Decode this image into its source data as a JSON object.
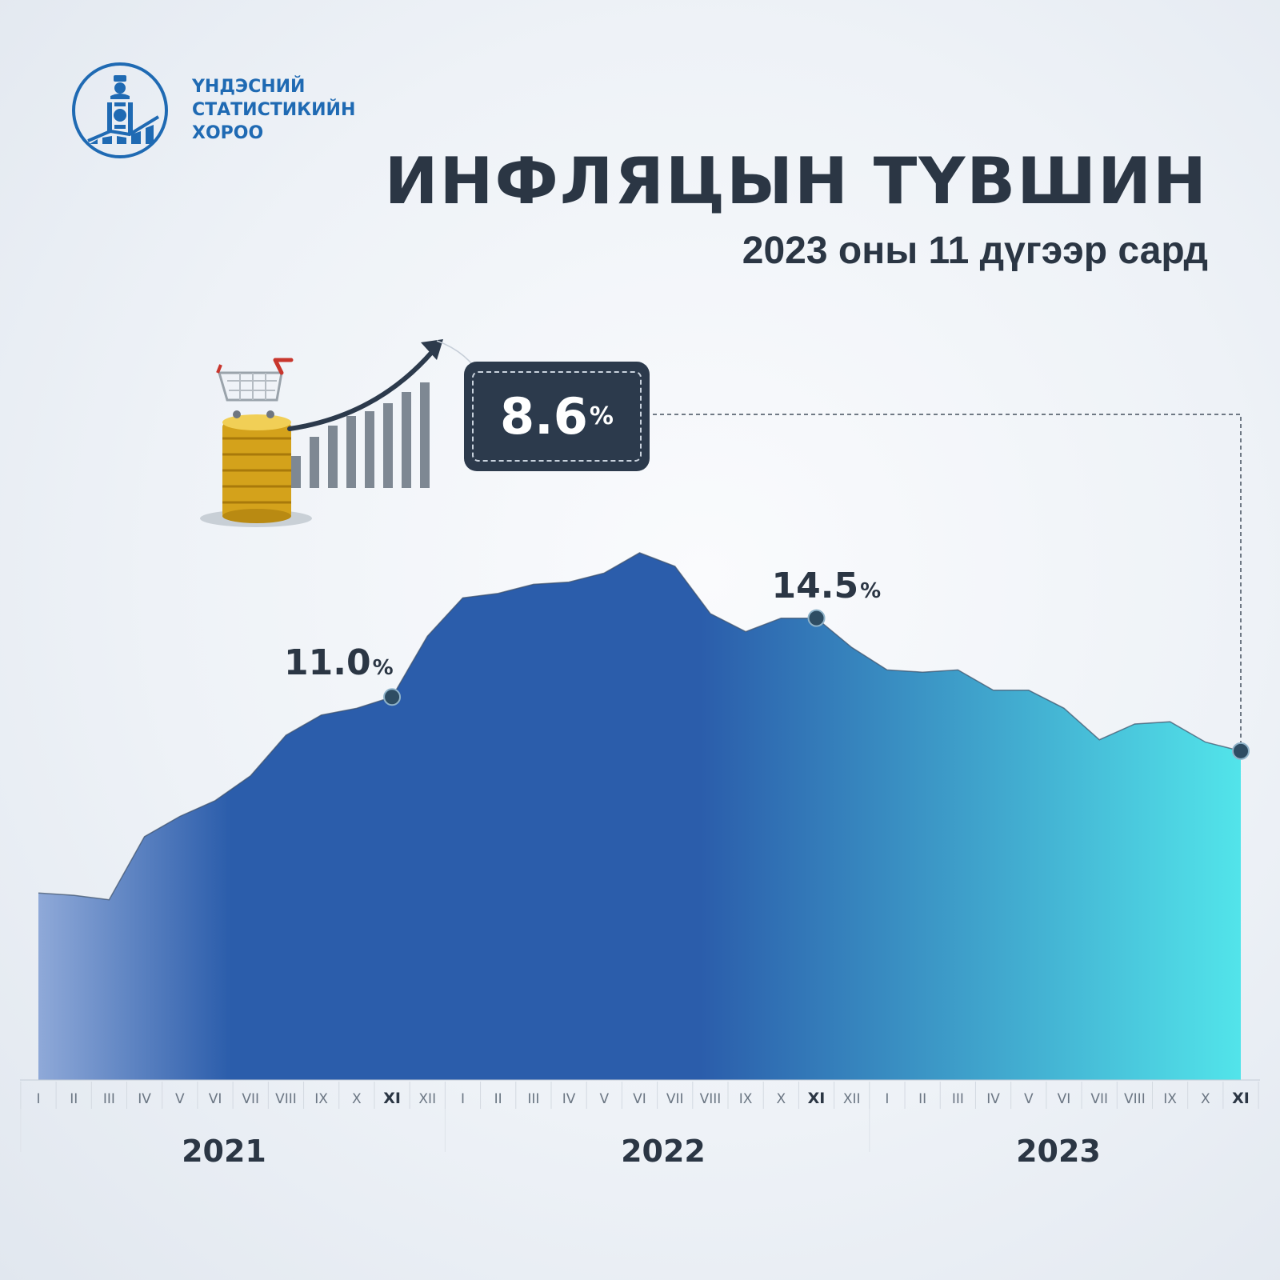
{
  "logo": {
    "lines": [
      "ҮНДЭСНИЙ",
      "СТАТИСТИКИЙН",
      "ХОРОО"
    ],
    "icon": "soyombo-emblem-icon",
    "color": "#1f6ab3"
  },
  "header": {
    "title": "ИНФЛЯЦЫН ТҮВШИН",
    "subtitle": "2023 оны 11 дүгээр сард"
  },
  "callout": {
    "value": "8.6",
    "unit": "%",
    "icon": "coins-cart-growth-icon"
  },
  "labels": [
    {
      "value": "11.0",
      "unit": "%"
    },
    {
      "value": "14.5",
      "unit": "%"
    }
  ],
  "colors": {
    "area_start": "#8fa9d8",
    "area_mid": "#2b5dab",
    "area_end": "#52e4ea",
    "dot": "#2e4d63",
    "text_dark": "#2b3644"
  },
  "chart_data": {
    "type": "area",
    "title": "ИНФЛЯЦЫН ТҮВШИН",
    "years": [
      "2021",
      "2022",
      "2023"
    ],
    "x": [
      "I",
      "II",
      "III",
      "IV",
      "V",
      "VI",
      "VII",
      "VIII",
      "IX",
      "X",
      "XI",
      "XII",
      "I",
      "II",
      "III",
      "IV",
      "V",
      "VI",
      "VII",
      "VIII",
      "IX",
      "X",
      "XI",
      "XII",
      "I",
      "II",
      "III",
      "IV",
      "V",
      "VI",
      "VII",
      "VIII",
      "IX",
      "X",
      "XI"
    ],
    "highlighted_months": [
      10,
      22,
      34
    ],
    "series": [
      {
        "values": [
          2.3,
          2.2,
          2.0,
          4.8,
          5.7,
          6.4,
          7.5,
          9.3,
          10.2,
          10.5,
          11.0,
          13.7,
          15.4,
          15.6,
          16.0,
          16.1,
          16.5,
          17.4,
          16.8,
          14.7,
          13.9,
          14.5,
          14.5,
          13.2,
          12.2,
          12.1,
          12.2,
          11.3,
          11.3,
          10.5,
          9.1,
          9.8,
          9.9,
          9.0,
          8.6
        ]
      }
    ],
    "annotations": [
      {
        "index": 10,
        "text": "11.0%"
      },
      {
        "index": 22,
        "text": "14.5%"
      },
      {
        "index": 34,
        "text": "8.6%"
      }
    ],
    "ylim": [
      -6,
      18.5
    ],
    "grid": false,
    "legend": "none"
  }
}
